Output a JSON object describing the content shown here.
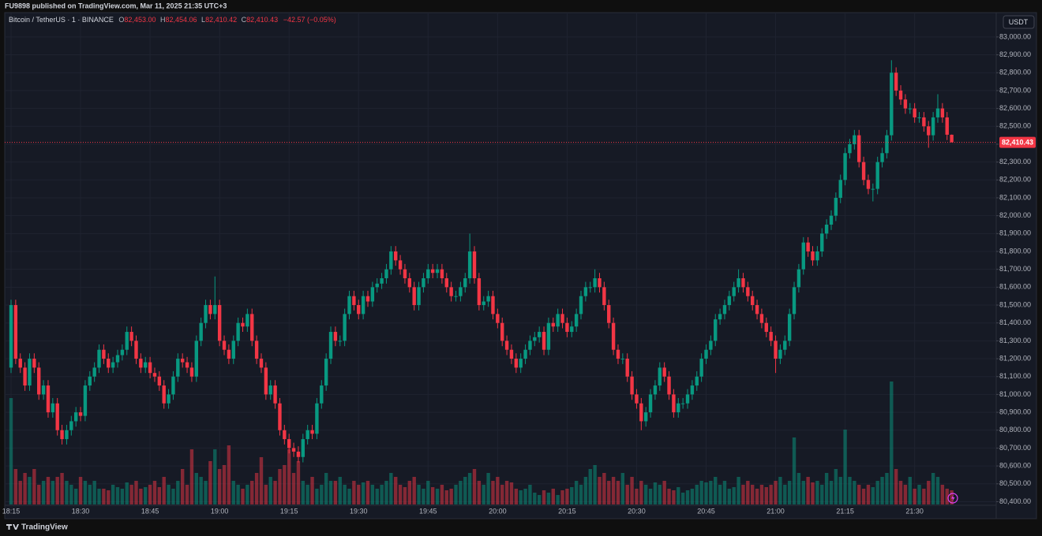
{
  "header": {
    "text": "FU9898 published on TradingView.com, Mar 11, 2025 21:35 UTC+3"
  },
  "chart_data": {
    "type": "candlestick",
    "symbol": "Bitcoin / TetherUS · 1 · BINANCE",
    "ohlc_legend": [
      {
        "key": "O",
        "value": "82,453.00"
      },
      {
        "key": "H",
        "value": "82,454.06"
      },
      {
        "key": "L",
        "value": "82,410.42"
      },
      {
        "key": "C",
        "value": "82,410.43"
      }
    ],
    "change": "−42.57 (−0.05%)",
    "currency": "USDT",
    "up_color": "#089981",
    "down_color": "#f23645",
    "grid": true,
    "ylim": [
      80380,
      83145
    ],
    "yticks": [
      {
        "value": 80400,
        "label": "80,400.00"
      },
      {
        "value": 80500,
        "label": "80,500.00"
      },
      {
        "value": 80600,
        "label": "80,600.00"
      },
      {
        "value": 80700,
        "label": "80,700.00"
      },
      {
        "value": 80800,
        "label": "80,800.00"
      },
      {
        "value": 80900,
        "label": "80,900.00"
      },
      {
        "value": 81000,
        "label": "81,000.00"
      },
      {
        "value": 81100,
        "label": "81,100.00"
      },
      {
        "value": 81200,
        "label": "81,200.00"
      },
      {
        "value": 81300,
        "label": "81,300.00"
      },
      {
        "value": 81400,
        "label": "81,400.00"
      },
      {
        "value": 81500,
        "label": "81,500.00"
      },
      {
        "value": 81600,
        "label": "81,600.00"
      },
      {
        "value": 81700,
        "label": "81,700.00"
      },
      {
        "value": 81800,
        "label": "81,800.00"
      },
      {
        "value": 81900,
        "label": "81,900.00"
      },
      {
        "value": 82000,
        "label": "82,000.00"
      },
      {
        "value": 82100,
        "label": "82,100.00"
      },
      {
        "value": 82200,
        "label": "82,200.00"
      },
      {
        "value": 82300,
        "label": "82,300.00"
      },
      {
        "value": 82400,
        "label": "82,400.00"
      },
      {
        "value": 82500,
        "label": "82,500.00"
      },
      {
        "value": 82600,
        "label": "82,600.00"
      },
      {
        "value": 82700,
        "label": "82,700.00"
      },
      {
        "value": 82800,
        "label": "82,800.00"
      },
      {
        "value": 82900,
        "label": "82,900.00"
      },
      {
        "value": 83000,
        "label": "83,000.00"
      }
    ],
    "last_price": {
      "value": 82410.43,
      "label": "82,410.43"
    },
    "categories": [
      "18:15",
      null,
      null,
      null,
      null,
      null,
      null,
      null,
      null,
      null,
      null,
      null,
      null,
      null,
      null,
      "18:30",
      null,
      null,
      null,
      null,
      null,
      null,
      null,
      null,
      null,
      null,
      null,
      null,
      null,
      null,
      "18:45",
      null,
      null,
      null,
      null,
      null,
      null,
      null,
      null,
      null,
      null,
      null,
      null,
      null,
      null,
      "19:00",
      null,
      null,
      null,
      null,
      null,
      null,
      null,
      null,
      null,
      null,
      null,
      null,
      null,
      null,
      "19:15",
      null,
      null,
      null,
      null,
      null,
      null,
      null,
      null,
      null,
      null,
      null,
      null,
      null,
      null,
      "19:30",
      null,
      null,
      null,
      null,
      null,
      null,
      null,
      null,
      null,
      null,
      null,
      null,
      null,
      null,
      "19:45",
      null,
      null,
      null,
      null,
      null,
      null,
      null,
      null,
      null,
      null,
      null,
      null,
      null,
      null,
      "20:00",
      null,
      null,
      null,
      null,
      null,
      null,
      null,
      null,
      null,
      null,
      null,
      null,
      null,
      null,
      "20:15",
      null,
      null,
      null,
      null,
      null,
      null,
      null,
      null,
      null,
      null,
      null,
      null,
      null,
      null,
      "20:30",
      null,
      null,
      null,
      null,
      null,
      null,
      null,
      null,
      null,
      null,
      null,
      null,
      null,
      null,
      "20:45",
      null,
      null,
      null,
      null,
      null,
      null,
      null,
      null,
      null,
      null,
      null,
      null,
      null,
      null,
      "21:00",
      null,
      null,
      null,
      null,
      null,
      null,
      null,
      null,
      null,
      null,
      null,
      null,
      null,
      null,
      "21:15",
      null,
      null,
      null,
      null,
      null,
      null,
      null,
      null,
      null,
      null,
      null,
      null,
      null,
      null,
      "21:30",
      null,
      null,
      null,
      null,
      null,
      null,
      null,
      null
    ],
    "open": [
      81150,
      81500,
      81200,
      81150,
      81050,
      81200,
      81150,
      81000,
      81050,
      80900,
      80950,
      80800,
      80750,
      80800,
      80850,
      80900,
      80880,
      81050,
      81100,
      81150,
      81250,
      81200,
      81150,
      81180,
      81220,
      81250,
      81350,
      81300,
      81200,
      81150,
      81180,
      81120,
      81100,
      81050,
      80950,
      81000,
      81100,
      81200,
      81180,
      81150,
      81100,
      81300,
      81400,
      81500,
      81450,
      81500,
      81300,
      81250,
      81200,
      81300,
      81400,
      81380,
      81450,
      81300,
      81200,
      81150,
      81000,
      81050,
      80950,
      80800,
      80750,
      80700,
      80680,
      80650,
      80750,
      80800,
      80780,
      80950,
      81050,
      81200,
      81350,
      81300,
      81300,
      81450,
      81550,
      81500,
      81450,
      81550,
      81520,
      81600,
      81620,
      81650,
      81700,
      81800,
      81750,
      81700,
      81650,
      81600,
      81500,
      81600,
      81650,
      81700,
      81680,
      81700,
      81650,
      81600,
      81550,
      81550,
      81600,
      81650,
      81800,
      81650,
      81500,
      81520,
      81550,
      81450,
      81400,
      81300,
      81250,
      81200,
      81150,
      81200,
      81250,
      81300,
      81320,
      81350,
      81250,
      81400,
      81380,
      81450,
      81400,
      81350,
      81380,
      81450,
      81550,
      81600,
      81600,
      81650,
      81600,
      81500,
      81400,
      81250,
      81200,
      81200,
      81100,
      81000,
      80950,
      80850,
      80900,
      81000,
      81050,
      81150,
      81100,
      81000,
      80900,
      80950,
      80950,
      81000,
      81050,
      81100,
      81200,
      81250,
      81300,
      81420,
      81450,
      81500,
      81550,
      81600,
      81650,
      81600,
      81550,
      81500,
      81450,
      81400,
      81350,
      81300,
      81200,
      81250,
      81300,
      81450,
      81600,
      81700,
      81850,
      81800,
      81750,
      81800,
      81900,
      81950,
      82000,
      82100,
      82200,
      82350,
      82400,
      82450,
      82300,
      82200,
      82150,
      82150,
      82300,
      82350,
      82450,
      82800,
      82700,
      82650,
      82600,
      82600,
      82550,
      82550,
      82500,
      82450,
      82550,
      82600,
      82550,
      82453
    ],
    "high": [
      81530,
      81530,
      81230,
      81180,
      81230,
      81230,
      81180,
      81080,
      81080,
      80980,
      80980,
      80830,
      80830,
      80880,
      80930,
      80930,
      81080,
      81130,
      81180,
      81280,
      81280,
      81230,
      81210,
      81250,
      81280,
      81380,
      81380,
      81330,
      81230,
      81210,
      81210,
      81150,
      81130,
      81080,
      81030,
      81130,
      81230,
      81230,
      81210,
      81180,
      81330,
      81430,
      81530,
      81530,
      81660,
      81530,
      81330,
      81280,
      81330,
      81430,
      81430,
      81480,
      81480,
      81330,
      81230,
      81180,
      81080,
      81080,
      80980,
      80830,
      80780,
      80730,
      80710,
      80780,
      80830,
      80830,
      80980,
      81080,
      81230,
      81380,
      81380,
      81330,
      81480,
      81580,
      81580,
      81530,
      81580,
      81580,
      81630,
      81650,
      81680,
      81730,
      81830,
      81830,
      81780,
      81730,
      81680,
      81630,
      81630,
      81680,
      81730,
      81730,
      81730,
      81730,
      81680,
      81630,
      81580,
      81630,
      81680,
      81900,
      81830,
      81680,
      81550,
      81580,
      81580,
      81480,
      81430,
      81330,
      81280,
      81230,
      81230,
      81280,
      81330,
      81350,
      81380,
      81380,
      81430,
      81430,
      81480,
      81480,
      81430,
      81410,
      81480,
      81580,
      81630,
      81630,
      81700,
      81680,
      81630,
      81530,
      81430,
      81280,
      81230,
      81230,
      81130,
      81030,
      80980,
      80930,
      81030,
      81080,
      81180,
      81180,
      81130,
      81030,
      80980,
      80980,
      81030,
      81080,
      81130,
      81230,
      81280,
      81330,
      81450,
      81480,
      81530,
      81580,
      81630,
      81700,
      81680,
      81630,
      81580,
      81530,
      81480,
      81430,
      81380,
      81330,
      81280,
      81330,
      81480,
      81630,
      81730,
      81880,
      81880,
      81830,
      81830,
      81930,
      81980,
      82030,
      82130,
      82230,
      82380,
      82430,
      82480,
      82480,
      82330,
      82230,
      82180,
      82330,
      82380,
      82480,
      82870,
      82830,
      82730,
      82680,
      82630,
      82630,
      82580,
      82580,
      82530,
      82580,
      82680,
      82630,
      82580,
      82454.06
    ],
    "low": [
      81120,
      81170,
      81120,
      81020,
      81020,
      81120,
      80970,
      80970,
      80870,
      80870,
      80770,
      80720,
      80720,
      80770,
      80820,
      80850,
      80850,
      81020,
      81070,
      81120,
      81170,
      81120,
      81120,
      81150,
      81190,
      81220,
      81270,
      81170,
      81120,
      81120,
      81090,
      81070,
      81020,
      80920,
      80920,
      80970,
      81070,
      81150,
      81120,
      81070,
      81070,
      81270,
      81370,
      81420,
      81420,
      81270,
      81220,
      81170,
      81170,
      81270,
      81350,
      81350,
      81270,
      81170,
      81120,
      80970,
      80970,
      80920,
      80770,
      80720,
      80670,
      80650,
      80620,
      80620,
      80720,
      80750,
      80750,
      80920,
      81020,
      81170,
      81270,
      81270,
      81270,
      81420,
      81470,
      81420,
      81420,
      81490,
      81490,
      81570,
      81590,
      81620,
      81670,
      81720,
      81670,
      81620,
      81570,
      81470,
      81470,
      81570,
      81620,
      81650,
      81650,
      81620,
      81570,
      81520,
      81520,
      81520,
      81570,
      81620,
      81620,
      81470,
      81470,
      81490,
      81420,
      81370,
      81270,
      81220,
      81170,
      81120,
      81120,
      81170,
      81220,
      81270,
      81290,
      81220,
      81220,
      81350,
      81350,
      81370,
      81320,
      81320,
      81350,
      81420,
      81520,
      81570,
      81570,
      81570,
      81470,
      81370,
      81220,
      81170,
      81170,
      81070,
      80970,
      80920,
      80800,
      80820,
      80870,
      80970,
      81020,
      81070,
      80970,
      80870,
      80870,
      80920,
      80920,
      80970,
      81020,
      81070,
      81170,
      81220,
      81270,
      81390,
      81420,
      81470,
      81520,
      81570,
      81570,
      81520,
      81470,
      81420,
      81370,
      81320,
      81270,
      81120,
      81170,
      81220,
      81270,
      81420,
      81570,
      81670,
      81770,
      81720,
      81720,
      81770,
      81870,
      81920,
      81970,
      82070,
      82170,
      82320,
      82370,
      82270,
      82170,
      82120,
      82080,
      82120,
      82270,
      82320,
      82420,
      82670,
      82620,
      82570,
      82570,
      82520,
      82520,
      82470,
      82380,
      82420,
      82520,
      82520,
      82423,
      82410.42
    ],
    "close": [
      81500,
      81200,
      81150,
      81050,
      81200,
      81150,
      81000,
      81050,
      80900,
      80950,
      80800,
      80750,
      80800,
      80850,
      80900,
      80880,
      81050,
      81100,
      81150,
      81250,
      81200,
      81150,
      81180,
      81220,
      81250,
      81350,
      81300,
      81200,
      81150,
      81180,
      81120,
      81100,
      81050,
      80950,
      81000,
      81100,
      81200,
      81180,
      81150,
      81100,
      81300,
      81400,
      81500,
      81450,
      81500,
      81300,
      81250,
      81200,
      81300,
      81400,
      81380,
      81450,
      81300,
      81200,
      81150,
      81000,
      81050,
      80950,
      80800,
      80750,
      80700,
      80680,
      80650,
      80750,
      80800,
      80780,
      80950,
      81050,
      81200,
      81350,
      81300,
      81300,
      81450,
      81550,
      81500,
      81450,
      81550,
      81520,
      81600,
      81620,
      81650,
      81700,
      81800,
      81750,
      81700,
      81650,
      81600,
      81500,
      81600,
      81650,
      81700,
      81680,
      81700,
      81650,
      81600,
      81550,
      81550,
      81600,
      81650,
      81800,
      81650,
      81500,
      81520,
      81550,
      81450,
      81400,
      81300,
      81250,
      81200,
      81150,
      81200,
      81250,
      81300,
      81320,
      81350,
      81250,
      81400,
      81380,
      81450,
      81400,
      81350,
      81380,
      81450,
      81550,
      81600,
      81600,
      81650,
      81600,
      81500,
      81400,
      81250,
      81200,
      81200,
      81100,
      81000,
      80950,
      80850,
      80900,
      81000,
      81050,
      81150,
      81100,
      81000,
      80900,
      80950,
      80950,
      81000,
      81050,
      81100,
      81200,
      81250,
      81300,
      81420,
      81450,
      81500,
      81550,
      81600,
      81650,
      81600,
      81550,
      81500,
      81450,
      81400,
      81350,
      81300,
      81200,
      81250,
      81300,
      81450,
      81600,
      81700,
      81850,
      81800,
      81750,
      81800,
      81900,
      81950,
      82000,
      82100,
      82200,
      82350,
      82400,
      82450,
      82300,
      82200,
      82150,
      82150,
      82300,
      82350,
      82450,
      82800,
      82700,
      82650,
      82600,
      82600,
      82550,
      82550,
      82500,
      82450,
      82550,
      82600,
      82550,
      82453,
      82410.43
    ],
    "volume": [
      135,
      45,
      30,
      40,
      35,
      45,
      25,
      30,
      35,
      30,
      35,
      40,
      30,
      25,
      20,
      35,
      30,
      25,
      30,
      20,
      20,
      18,
      25,
      22,
      20,
      28,
      25,
      30,
      20,
      22,
      25,
      30,
      22,
      35,
      25,
      20,
      30,
      45,
      25,
      70,
      40,
      35,
      30,
      55,
      70,
      45,
      50,
      75,
      30,
      25,
      20,
      25,
      30,
      40,
      60,
      25,
      35,
      30,
      45,
      50,
      70,
      40,
      55,
      30,
      25,
      35,
      20,
      25,
      40,
      30,
      30,
      35,
      25,
      20,
      30,
      25,
      28,
      30,
      25,
      20,
      25,
      30,
      40,
      35,
      25,
      22,
      30,
      35,
      25,
      20,
      30,
      22,
      20,
      25,
      18,
      20,
      25,
      30,
      35,
      40,
      45,
      30,
      25,
      40,
      30,
      35,
      25,
      30,
      28,
      20,
      18,
      20,
      25,
      15,
      12,
      18,
      15,
      20,
      12,
      18,
      20,
      22,
      30,
      25,
      35,
      45,
      50,
      35,
      40,
      30,
      35,
      30,
      40,
      25,
      35,
      20,
      30,
      25,
      20,
      28,
      25,
      30,
      20,
      18,
      22,
      15,
      18,
      20,
      25,
      30,
      28,
      30,
      35,
      25,
      30,
      20,
      22,
      35,
      25,
      30,
      25,
      20,
      25,
      22,
      25,
      30,
      35,
      25,
      30,
      85,
      40,
      30,
      35,
      28,
      30,
      25,
      40,
      30,
      45,
      35,
      95,
      35,
      30,
      25,
      20,
      25,
      22,
      30,
      35,
      40,
      156,
      45,
      30,
      25,
      35,
      20,
      25,
      20,
      30,
      40,
      35,
      25,
      20,
      18
    ]
  },
  "footer": {
    "brand": "TradingView"
  }
}
